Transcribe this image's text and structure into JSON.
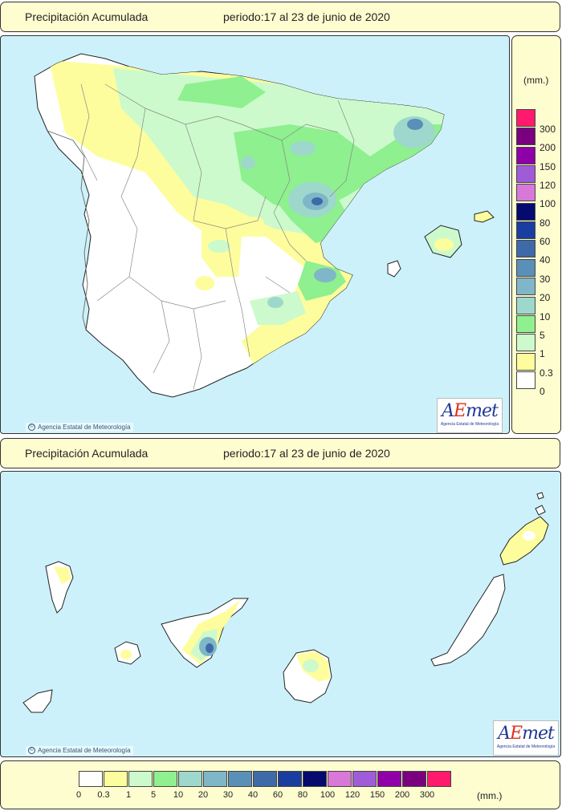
{
  "top_panel": {
    "title": "Precipitación Acumulada",
    "period": "periodo:17 al 23 de junio de 2020",
    "credit": "Agencia Estatal de Meteorología",
    "logo_text": "AEmet",
    "logo_sub": "Agencia Estatal de Meteorología"
  },
  "bottom_panel": {
    "title": "Precipitación Acumulada",
    "period": "periodo:17 al 23 de junio de 2020",
    "credit": "Agencia Estatal de Meteorología",
    "logo_text": "AEmet",
    "logo_sub": "Agencia Estatal de Meteorología"
  },
  "legend": {
    "unit": "(mm.)",
    "classes": [
      {
        "label": "0",
        "color": "#ffffff"
      },
      {
        "label": "0.3",
        "color": "#fdfd9d"
      },
      {
        "label": "1",
        "color": "#ccfacc"
      },
      {
        "label": "5",
        "color": "#8ef08e"
      },
      {
        "label": "10",
        "color": "#9ed8cc"
      },
      {
        "label": "20",
        "color": "#7fb7c8"
      },
      {
        "label": "30",
        "color": "#5a8fb8"
      },
      {
        "label": "40",
        "color": "#3f6aa8"
      },
      {
        "label": "60",
        "color": "#1a3ea0"
      },
      {
        "label": "80",
        "color": "#060a6e"
      },
      {
        "label": "100",
        "color": "#d878d8"
      },
      {
        "label": "120",
        "color": "#a05cd8"
      },
      {
        "label": "150",
        "color": "#9000a8"
      },
      {
        "label": "200",
        "color": "#7a0080"
      },
      {
        "label": "300",
        "color": "#ff1a6e"
      }
    ]
  },
  "colors": {
    "sea": "#cdf1fa",
    "land": "#ffffff",
    "panel_background": "#fefdd0",
    "borders": "#888888"
  }
}
